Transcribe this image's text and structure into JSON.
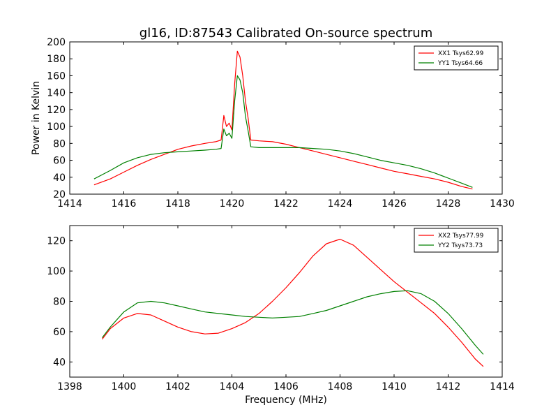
{
  "chart_data": [
    {
      "type": "line",
      "title": "gl16, ID:87543 Calibrated On-source spectrum",
      "xlabel": "",
      "ylabel": "Power in Kelvin",
      "xlim": [
        1414,
        1430
      ],
      "ylim": [
        20,
        200
      ],
      "xticks": [
        1414,
        1416,
        1418,
        1420,
        1422,
        1424,
        1426,
        1428,
        1430
      ],
      "yticks": [
        20,
        40,
        60,
        80,
        100,
        120,
        140,
        160,
        180,
        200
      ],
      "legend_position": "top-right",
      "series": [
        {
          "name": "XX1 Tsys62.99",
          "color": "#ff0000",
          "x": [
            1414.9,
            1415.5,
            1416.0,
            1416.5,
            1417.0,
            1417.5,
            1418.0,
            1418.5,
            1419.0,
            1419.4,
            1419.6,
            1419.7,
            1419.8,
            1419.9,
            1420.0,
            1420.1,
            1420.2,
            1420.3,
            1420.4,
            1420.5,
            1420.6,
            1420.7,
            1421.0,
            1421.5,
            1422.0,
            1422.5,
            1423.0,
            1423.5,
            1424.0,
            1424.5,
            1425.0,
            1425.5,
            1426.0,
            1426.5,
            1427.0,
            1427.5,
            1428.0,
            1428.5,
            1428.9
          ],
          "values": [
            31,
            38,
            46,
            54,
            61,
            67,
            73,
            77,
            80,
            82,
            84,
            113,
            100,
            104,
            96,
            150,
            189,
            182,
            160,
            130,
            110,
            84,
            83,
            82,
            79,
            75,
            71,
            67,
            63,
            59,
            55,
            51,
            47,
            44,
            41,
            38,
            34,
            29,
            26
          ]
        },
        {
          "name": "YY1 Tsys64.66",
          "color": "#008000",
          "x": [
            1414.9,
            1415.5,
            1416.0,
            1416.5,
            1417.0,
            1417.5,
            1418.0,
            1418.5,
            1419.0,
            1419.4,
            1419.6,
            1419.7,
            1419.8,
            1419.9,
            1420.0,
            1420.1,
            1420.2,
            1420.3,
            1420.4,
            1420.5,
            1420.6,
            1420.7,
            1421.0,
            1421.5,
            1422.0,
            1422.5,
            1423.0,
            1423.5,
            1424.0,
            1424.5,
            1425.0,
            1425.5,
            1426.0,
            1426.5,
            1427.0,
            1427.5,
            1428.0,
            1428.5,
            1428.9
          ],
          "values": [
            38,
            48,
            57,
            63,
            67,
            69,
            70,
            71,
            72,
            73,
            74,
            97,
            89,
            92,
            86,
            130,
            160,
            155,
            140,
            112,
            95,
            76,
            75,
            75,
            75,
            75,
            74,
            73,
            71,
            68,
            64,
            60,
            57,
            54,
            50,
            45,
            39,
            33,
            28
          ]
        }
      ]
    },
    {
      "type": "line",
      "title": "",
      "xlabel": "Frequency (MHz)",
      "ylabel": "",
      "xlim": [
        1398,
        1414
      ],
      "ylim": [
        30,
        130
      ],
      "xticks": [
        1398,
        1400,
        1402,
        1404,
        1406,
        1408,
        1410,
        1412,
        1414
      ],
      "yticks": [
        40,
        60,
        80,
        100,
        120
      ],
      "legend_position": "top-right",
      "series": [
        {
          "name": "XX2 Tsys77.99",
          "color": "#ff0000",
          "x": [
            1399.2,
            1399.5,
            1400.0,
            1400.5,
            1401.0,
            1401.5,
            1402.0,
            1402.5,
            1403.0,
            1403.5,
            1404.0,
            1404.5,
            1405.0,
            1405.5,
            1406.0,
            1406.5,
            1407.0,
            1407.5,
            1408.0,
            1408.5,
            1409.0,
            1409.5,
            1410.0,
            1410.5,
            1411.0,
            1411.5,
            1412.0,
            1412.5,
            1413.0,
            1413.3
          ],
          "values": [
            55,
            62,
            69,
            72,
            71,
            67,
            63,
            60,
            58.5,
            59,
            62,
            66,
            72,
            80,
            89,
            99,
            110,
            118,
            121,
            117,
            109,
            101,
            93,
            86,
            79,
            72,
            63,
            53,
            42,
            37
          ]
        },
        {
          "name": "YY2 Tsys73.73",
          "color": "#008000",
          "x": [
            1399.2,
            1399.5,
            1400.0,
            1400.5,
            1401.0,
            1401.5,
            1402.0,
            1402.5,
            1403.0,
            1403.5,
            1404.0,
            1404.5,
            1405.0,
            1405.5,
            1406.0,
            1406.5,
            1407.0,
            1407.5,
            1408.0,
            1408.5,
            1409.0,
            1409.5,
            1410.0,
            1410.5,
            1411.0,
            1411.5,
            1412.0,
            1412.5,
            1413.0,
            1413.3
          ],
          "values": [
            56,
            63,
            73,
            79,
            80,
            79,
            77,
            75,
            73,
            72,
            71,
            70,
            69.5,
            69,
            69.5,
            70,
            72,
            74,
            77,
            80,
            83,
            85,
            86.5,
            87,
            85,
            80,
            72,
            62,
            51,
            45
          ]
        }
      ]
    }
  ]
}
